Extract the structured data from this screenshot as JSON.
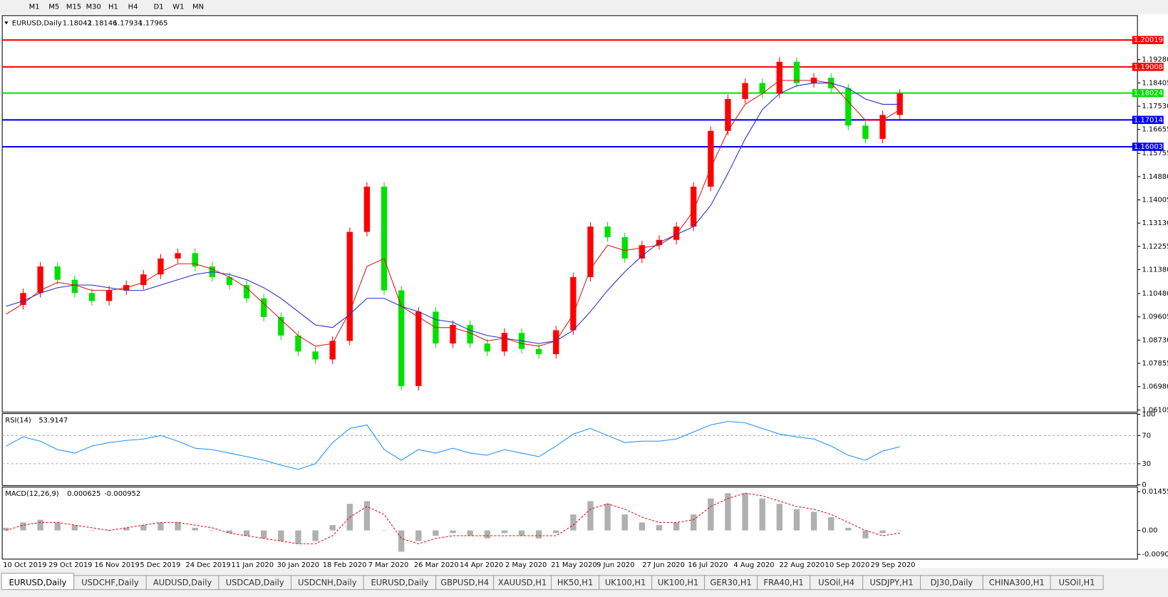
{
  "toolbar": {
    "timeframes": [
      "M1",
      "M5",
      "M15",
      "M30",
      "H1",
      "H4",
      "D1",
      "W1",
      "MN"
    ]
  },
  "chart_data": [
    {
      "type": "candlestick",
      "symbol": "EURUSD,Daily",
      "ohlc": [
        1.18042,
        1.18146,
        1.17934,
        1.17965
      ],
      "close": [
        1.1005,
        1.105,
        1.115,
        1.11,
        1.105,
        1.102,
        1.106,
        1.108,
        1.112,
        1.118,
        1.12,
        1.115,
        1.111,
        1.108,
        1.103,
        1.096,
        1.089,
        1.083,
        1.08,
        1.087,
        1.128,
        1.145,
        1.106,
        1.07,
        1.098,
        1.086,
        1.093,
        1.086,
        1.083,
        1.09,
        1.084,
        1.082,
        1.091,
        1.111,
        1.13,
        1.126,
        1.118,
        1.123,
        1.125,
        1.13,
        1.145,
        1.166,
        1.178,
        1.184,
        1.18,
        1.192,
        1.184,
        1.186,
        1.182,
        1.168,
        1.163,
        1.172,
        1.18
      ],
      "up_color": "#ff0000",
      "down_color": "#00e000",
      "series": [
        {
          "color": "#1f2fd0",
          "values": [
            1.1,
            1.102,
            1.105,
            1.107,
            1.108,
            1.108,
            1.107,
            1.106,
            1.106,
            1.108,
            1.11,
            1.112,
            1.113,
            1.112,
            1.11,
            1.107,
            1.103,
            1.098,
            1.093,
            1.092,
            1.097,
            1.103,
            1.103,
            1.1,
            1.098,
            1.095,
            1.094,
            1.091,
            1.089,
            1.088,
            1.087,
            1.086,
            1.087,
            1.091,
            1.098,
            1.106,
            1.113,
            1.119,
            1.124,
            1.127,
            1.13,
            1.138,
            1.15,
            1.163,
            1.174,
            1.18,
            1.183,
            1.184,
            1.184,
            1.182,
            1.178,
            1.176,
            1.176
          ]
        },
        {
          "color": "#e01010",
          "values": [
            1.097,
            1.101,
            1.106,
            1.109,
            1.108,
            1.106,
            1.106,
            1.107,
            1.109,
            1.113,
            1.116,
            1.116,
            1.114,
            1.111,
            1.107,
            1.101,
            1.095,
            1.089,
            1.085,
            1.086,
            1.098,
            1.115,
            1.118,
            1.1,
            1.096,
            1.092,
            1.092,
            1.09,
            1.087,
            1.088,
            1.086,
            1.085,
            1.087,
            1.097,
            1.114,
            1.123,
            1.121,
            1.122,
            1.123,
            1.127,
            1.136,
            1.152,
            1.166,
            1.176,
            1.18,
            1.185,
            1.185,
            1.185,
            1.184,
            1.177,
            1.17,
            1.17,
            1.174
          ]
        }
      ],
      "levels": [
        {
          "value": 1.20019,
          "color": "#ff0000"
        },
        {
          "value": 1.19008,
          "color": "#ff0000"
        },
        {
          "value": 1.18024,
          "color": "#00e000"
        },
        {
          "value": 1.17014,
          "color": "#0000ff"
        },
        {
          "value": 1.16003,
          "color": "#0000ff"
        }
      ],
      "ylim": [
        1.0602,
        1.2091
      ],
      "yticks": [
        {
          "value": 1.1928,
          "label": "1.19280"
        },
        {
          "value": 1.18405,
          "label": "1.18405"
        },
        {
          "value": 1.1753,
          "label": "1.17530"
        },
        {
          "value": 1.16655,
          "label": "1.16655"
        },
        {
          "value": 1.15755,
          "label": "1.15755"
        },
        {
          "value": 1.1488,
          "label": "1.14880"
        },
        {
          "value": 1.14005,
          "label": "1.14005"
        },
        {
          "value": 1.1313,
          "label": "1.13130"
        },
        {
          "value": 1.12255,
          "label": "1.12255"
        },
        {
          "value": 1.1138,
          "label": "1.11380"
        },
        {
          "value": 1.1048,
          "label": "1.10480"
        },
        {
          "value": 1.09605,
          "label": "1.09605"
        },
        {
          "value": 1.0873,
          "label": "1.08730"
        },
        {
          "value": 1.07855,
          "label": "1.07855"
        },
        {
          "value": 1.0698,
          "label": "1.06980"
        },
        {
          "value": 1.06105,
          "label": "1.06105"
        }
      ],
      "xticks": [
        "10 Oct 2019",
        "29 Oct 2019",
        "16 Nov 2019",
        "5 Dec 2019",
        "24 Dec 2019",
        "11 Jan 2020",
        "30 Jan 2020",
        "18 Feb 2020",
        "7 Mar 2020",
        "26 Mar 2020",
        "14 Apr 2020",
        "2 May 2020",
        "21 May 2020",
        "9 Jun 2020",
        "27 Jun 2020",
        "16 Jul 2020",
        "4 Aug 2020",
        "22 Aug 2020",
        "10 Sep 2020",
        "29 Sep 2020"
      ]
    },
    {
      "type": "line",
      "name": "RSI(14)",
      "current": 53.9147,
      "color": "#1e90ff",
      "values": [
        55,
        68,
        62,
        50,
        45,
        55,
        60,
        63,
        65,
        70,
        62,
        52,
        50,
        45,
        40,
        35,
        28,
        22,
        30,
        60,
        80,
        85,
        50,
        35,
        50,
        45,
        52,
        45,
        42,
        50,
        45,
        40,
        55,
        72,
        80,
        70,
        60,
        62,
        62,
        65,
        75,
        85,
        90,
        88,
        80,
        72,
        68,
        65,
        55,
        42,
        35,
        48,
        54
      ],
      "ylim": [
        0,
        100
      ],
      "yticks": [
        100,
        70,
        30,
        0
      ],
      "levels": [
        70,
        30
      ]
    },
    {
      "type": "macd",
      "name": "MACD(12,26,9)",
      "current": [
        0.000625,
        -0.000952
      ],
      "hist_color": "#b0b0b0",
      "signal_color": "#e01010",
      "hist": [
        0.001,
        0.003,
        0.004,
        0.003,
        0.002,
        0.0,
        0.0,
        0.001,
        0.002,
        0.003,
        0.003,
        0.001,
        0.0,
        -0.001,
        -0.002,
        -0.003,
        -0.004,
        -0.005,
        -0.004,
        0.002,
        0.01,
        0.011,
        0.0,
        -0.008,
        -0.004,
        -0.002,
        -0.001,
        -0.002,
        -0.003,
        -0.001,
        -0.002,
        -0.003,
        -0.001,
        0.006,
        0.011,
        0.01,
        0.006,
        0.003,
        0.002,
        0.003,
        0.006,
        0.012,
        0.014,
        0.014,
        0.012,
        0.01,
        0.008,
        0.007,
        0.005,
        0.001,
        -0.003,
        -0.001,
        0.0
      ],
      "signal": [
        0.0,
        0.002,
        0.003,
        0.003,
        0.002,
        0.001,
        0.0,
        0.001,
        0.002,
        0.003,
        0.003,
        0.002,
        0.001,
        -0.001,
        -0.002,
        -0.003,
        -0.004,
        -0.005,
        -0.005,
        -0.002,
        0.005,
        0.009,
        0.006,
        -0.003,
        -0.005,
        -0.003,
        -0.002,
        -0.002,
        -0.002,
        -0.002,
        -0.002,
        -0.002,
        -0.002,
        0.002,
        0.008,
        0.01,
        0.008,
        0.005,
        0.003,
        0.003,
        0.004,
        0.009,
        0.012,
        0.014,
        0.013,
        0.011,
        0.009,
        0.008,
        0.006,
        0.003,
        0.0,
        -0.002,
        -0.001
      ],
      "ylim": [
        -0.0105,
        0.016
      ],
      "yticks": [
        0.014556,
        {
          "value": 0,
          "label": "0.00"
        },
        -0.009001
      ]
    }
  ],
  "tabs": [
    "EURUSD,Daily",
    "USDCHF,Daily",
    "AUDUSD,Daily",
    "USDCAD,Daily",
    "USDCNH,Daily",
    "EURUSD,Daily",
    "GBPUSD,H4",
    "XAUUSD,H1",
    "HK50,H1",
    "UK100,H1",
    "UK100,H1",
    "GER30,H1",
    "FRA40,H1",
    "USOil,H4",
    "USDJPY,H1",
    "DJ30,Daily",
    "CHINA300,H1",
    "USOil,H1"
  ]
}
